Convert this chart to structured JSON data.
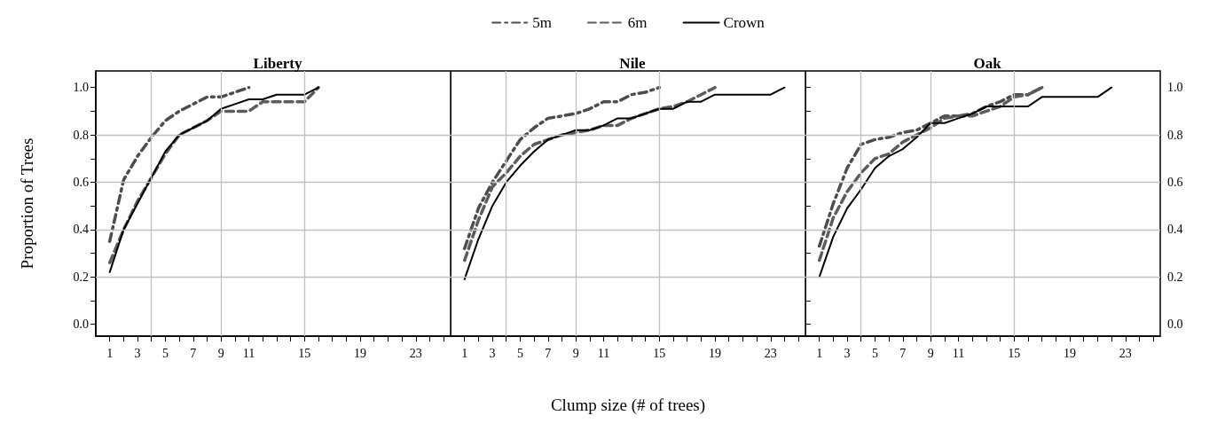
{
  "chart_data": [
    {
      "type": "line",
      "title": "Liberty",
      "ylabel": "Proportion of Trees",
      "marker": "none",
      "grid": "y",
      "xlim": [
        0,
        25.5
      ],
      "xticks": [
        1,
        {
          "value": 2,
          "label": null
        },
        3,
        {
          "value": 4,
          "label": null
        },
        5,
        {
          "value": 6,
          "label": null
        },
        7,
        {
          "value": 8,
          "label": null
        },
        9,
        {
          "value": 10,
          "label": null
        },
        11,
        {
          "value": 12,
          "label": null
        },
        {
          "value": 13,
          "label": null
        },
        {
          "value": 14,
          "label": null
        },
        15,
        {
          "value": 16,
          "label": null
        },
        {
          "value": 17,
          "label": null
        },
        {
          "value": 18,
          "label": null
        },
        19,
        {
          "value": 20,
          "label": null
        },
        {
          "value": 21,
          "label": null
        },
        {
          "value": 22,
          "label": null
        },
        23,
        {
          "value": 24,
          "label": null
        },
        {
          "value": 25,
          "label": null
        }
      ],
      "ylim": [
        -0.05,
        1.07
      ],
      "yticks": [
        {
          "value": 0,
          "label": "0.0"
        },
        {
          "value": 0.1,
          "label": null
        },
        0.2,
        {
          "value": 0.3,
          "label": null
        },
        0.4,
        {
          "value": 0.5,
          "label": null
        },
        0.6,
        {
          "value": 0.7,
          "label": null
        },
        0.8,
        {
          "value": 0.9,
          "label": null
        },
        {
          "value": 1,
          "label": "1.0"
        }
      ],
      "ref_lines": [
        {
          "axis": "x",
          "value": 4,
          "color": "#c0c0c0"
        },
        {
          "axis": "x",
          "value": 9,
          "color": "#c0c0c0"
        },
        {
          "axis": "x",
          "value": 15,
          "color": "#c0c0c0"
        }
      ],
      "series": [
        {
          "color": "#4d4d4d",
          "line_style": "dashdot",
          "x": [
            1,
            2,
            3,
            4,
            5,
            6,
            7,
            8,
            9,
            10,
            11
          ],
          "values": [
            0.35,
            0.61,
            0.71,
            0.79,
            0.86,
            0.9,
            0.93,
            0.96,
            0.96,
            0.98,
            1.0
          ]
        },
        {
          "color": "#5c5c5c",
          "line_style": "dashed",
          "x": [
            1,
            2,
            3,
            4,
            5,
            6,
            7,
            8,
            9,
            10,
            11,
            12,
            13,
            14,
            15,
            16
          ],
          "values": [
            0.26,
            0.4,
            0.52,
            0.62,
            0.72,
            0.8,
            0.83,
            0.86,
            0.9,
            0.9,
            0.9,
            0.94,
            0.94,
            0.94,
            0.94,
            1.0
          ]
        },
        {
          "color": "#000000",
          "line_style": "solid",
          "x": [
            1,
            2,
            3,
            4,
            5,
            6,
            7,
            8,
            9,
            10,
            11,
            12,
            13,
            14,
            15,
            16
          ],
          "values": [
            0.22,
            0.4,
            0.51,
            0.62,
            0.73,
            0.8,
            0.83,
            0.86,
            0.91,
            0.93,
            0.95,
            0.95,
            0.97,
            0.97,
            0.97,
            1.0
          ]
        }
      ]
    },
    {
      "type": "line",
      "title": "Nile",
      "xlabel": "Clump size (# of trees)",
      "marker": "none",
      "grid": "y",
      "legend": "top",
      "tick_labels": "x",
      "xlim": [
        0,
        25.5
      ],
      "xticks": [
        1,
        {
          "value": 2,
          "label": null
        },
        3,
        {
          "value": 4,
          "label": null
        },
        5,
        {
          "value": 6,
          "label": null
        },
        7,
        {
          "value": 8,
          "label": null
        },
        9,
        {
          "value": 10,
          "label": null
        },
        11,
        {
          "value": 12,
          "label": null
        },
        {
          "value": 13,
          "label": null
        },
        {
          "value": 14,
          "label": null
        },
        15,
        {
          "value": 16,
          "label": null
        },
        {
          "value": 17,
          "label": null
        },
        {
          "value": 18,
          "label": null
        },
        19,
        {
          "value": 20,
          "label": null
        },
        {
          "value": 21,
          "label": null
        },
        {
          "value": 22,
          "label": null
        },
        23,
        {
          "value": 24,
          "label": null
        },
        {
          "value": 25,
          "label": null
        }
      ],
      "ylim": [
        -0.05,
        1.07
      ],
      "yticks": [
        0,
        0.2,
        0.4,
        0.6,
        0.8,
        1
      ],
      "ref_lines": [
        {
          "axis": "x",
          "value": 4,
          "color": "#c0c0c0"
        },
        {
          "axis": "x",
          "value": 9,
          "color": "#c0c0c0"
        },
        {
          "axis": "x",
          "value": 15,
          "color": "#c0c0c0"
        }
      ],
      "series": [
        {
          "name": "5m",
          "color": "#4d4d4d",
          "line_style": "dashdot",
          "x": [
            1,
            2,
            3,
            4,
            5,
            6,
            7,
            8,
            9,
            10,
            11,
            12,
            13,
            14,
            15
          ],
          "values": [
            0.32,
            0.49,
            0.6,
            0.69,
            0.78,
            0.83,
            0.87,
            0.88,
            0.89,
            0.91,
            0.94,
            0.94,
            0.97,
            0.98,
            1.0
          ]
        },
        {
          "name": "6m",
          "color": "#5c5c5c",
          "line_style": "dashed",
          "x": [
            1,
            2,
            3,
            4,
            5,
            6,
            7,
            8,
            9,
            10,
            11,
            12,
            13,
            14,
            15,
            16,
            17,
            18,
            19
          ],
          "values": [
            0.27,
            0.44,
            0.58,
            0.64,
            0.71,
            0.76,
            0.78,
            0.8,
            0.81,
            0.82,
            0.84,
            0.84,
            0.87,
            0.89,
            0.91,
            0.92,
            0.94,
            0.97,
            1.0
          ]
        },
        {
          "name": "Crown",
          "color": "#000000",
          "line_style": "solid",
          "x": [
            1,
            2,
            3,
            4,
            5,
            6,
            7,
            8,
            9,
            10,
            11,
            12,
            13,
            14,
            15,
            16,
            17,
            18,
            19,
            20,
            21,
            22,
            23,
            24
          ],
          "values": [
            0.19,
            0.36,
            0.5,
            0.6,
            0.67,
            0.73,
            0.78,
            0.8,
            0.82,
            0.82,
            0.84,
            0.87,
            0.87,
            0.89,
            0.91,
            0.91,
            0.94,
            0.94,
            0.97,
            0.97,
            0.97,
            0.97,
            0.97,
            1.0
          ]
        }
      ]
    },
    {
      "type": "line",
      "title": "Oak",
      "marker": "none",
      "grid": "y",
      "xlim": [
        0,
        25.5
      ],
      "xticks": [
        1,
        {
          "value": 2,
          "label": null
        },
        3,
        {
          "value": 4,
          "label": null
        },
        5,
        {
          "value": 6,
          "label": null
        },
        7,
        {
          "value": 8,
          "label": null
        },
        9,
        {
          "value": 10,
          "label": null
        },
        11,
        {
          "value": 12,
          "label": null
        },
        {
          "value": 13,
          "label": null
        },
        {
          "value": 14,
          "label": null
        },
        15,
        {
          "value": 16,
          "label": null
        },
        {
          "value": 17,
          "label": null
        },
        {
          "value": 18,
          "label": null
        },
        19,
        {
          "value": 20,
          "label": null
        },
        {
          "value": 21,
          "label": null
        },
        {
          "value": 22,
          "label": null
        },
        23,
        {
          "value": 24,
          "label": null
        },
        {
          "value": 25,
          "label": null
        }
      ],
      "y2lim": [
        -0.05,
        1.07
      ],
      "y2ticks": [
        {
          "value": 0,
          "label": "0.0"
        },
        {
          "value": 0.1,
          "label": null
        },
        0.2,
        {
          "value": 0.3,
          "label": null
        },
        0.4,
        {
          "value": 0.5,
          "label": null
        },
        0.6,
        {
          "value": 0.7,
          "label": null
        },
        0.8,
        {
          "value": 0.9,
          "label": null
        },
        {
          "value": 1,
          "label": "1.0"
        }
      ],
      "ref_lines": [
        {
          "axis": "x",
          "value": 4,
          "color": "#c0c0c0"
        },
        {
          "axis": "x",
          "value": 9,
          "color": "#c0c0c0"
        },
        {
          "axis": "x",
          "value": 15,
          "color": "#c0c0c0"
        }
      ],
      "series": [
        {
          "color": "#4d4d4d",
          "line_style": "dashdot",
          "axis": "y2",
          "x": [
            1,
            2,
            3,
            4,
            5,
            6,
            7,
            8,
            9,
            10,
            11,
            12,
            13,
            14,
            15,
            16,
            17
          ],
          "values": [
            0.33,
            0.51,
            0.66,
            0.76,
            0.78,
            0.79,
            0.81,
            0.82,
            0.85,
            0.88,
            0.88,
            0.89,
            0.92,
            0.94,
            0.97,
            0.97,
            1.0
          ]
        },
        {
          "color": "#5c5c5c",
          "line_style": "dashed",
          "axis": "y2",
          "x": [
            1,
            2,
            3,
            4,
            5,
            6,
            7,
            8,
            9,
            10,
            11,
            12,
            13,
            14,
            15,
            16,
            17
          ],
          "values": [
            0.27,
            0.45,
            0.56,
            0.64,
            0.7,
            0.72,
            0.77,
            0.8,
            0.83,
            0.87,
            0.88,
            0.88,
            0.9,
            0.92,
            0.96,
            0.97,
            1.0
          ]
        },
        {
          "color": "#000000",
          "line_style": "solid",
          "axis": "y2",
          "x": [
            1,
            2,
            3,
            4,
            5,
            6,
            7,
            8,
            9,
            10,
            11,
            12,
            13,
            14,
            15,
            16,
            17,
            18,
            19,
            20,
            21,
            22
          ],
          "values": [
            0.2,
            0.37,
            0.49,
            0.57,
            0.66,
            0.71,
            0.74,
            0.79,
            0.85,
            0.85,
            0.87,
            0.89,
            0.92,
            0.92,
            0.92,
            0.92,
            0.96,
            0.96,
            0.96,
            0.96,
            0.96,
            1.0
          ]
        }
      ]
    }
  ]
}
